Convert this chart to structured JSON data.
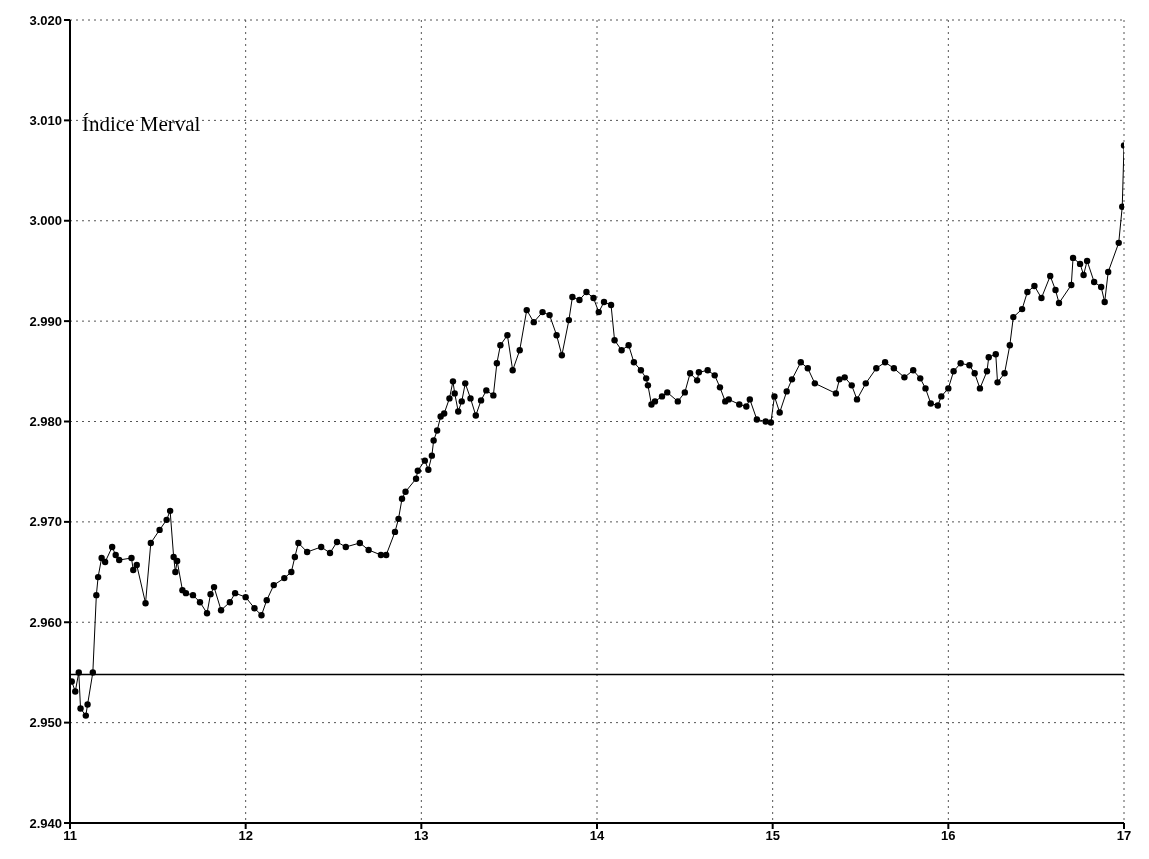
{
  "chart_data": {
    "type": "line",
    "annotations": [
      "Índice Merval"
    ],
    "xlim": [
      11,
      17
    ],
    "xticks": [
      11,
      12,
      13,
      14,
      15,
      16,
      17
    ],
    "ylim": [
      2940,
      3020
    ],
    "yticks": [
      {
        "value": 2940,
        "label": "2.940"
      },
      {
        "value": 2950,
        "label": "2.950"
      },
      {
        "value": 2960,
        "label": "2.960"
      },
      {
        "value": 2970,
        "label": "2.970"
      },
      {
        "value": 2980,
        "label": "2.980"
      },
      {
        "value": 2990,
        "label": "2.990"
      },
      {
        "value": 3000,
        "label": "3.000"
      },
      {
        "value": 3010,
        "label": "3.010"
      },
      {
        "value": 3020,
        "label": "3.020"
      }
    ],
    "grid": true,
    "marker": "circle",
    "line_style": "solid",
    "ref_lines": [
      {
        "axis": "y",
        "value": 2954.8,
        "color": "#000000"
      }
    ],
    "series": [
      {
        "color": "#000000",
        "x": [
          11.01,
          11.03,
          11.05,
          11.06,
          11.09,
          11.1,
          11.13,
          11.15,
          11.16,
          11.18,
          11.2,
          11.24,
          11.26,
          11.28,
          11.35,
          11.36,
          11.38,
          11.43,
          11.46,
          11.51,
          11.55,
          11.57,
          11.59,
          11.6,
          11.61,
          11.64,
          11.66,
          11.7,
          11.74,
          11.78,
          11.8,
          11.82,
          11.86,
          11.91,
          11.94,
          12.0,
          12.05,
          12.09,
          12.12,
          12.16,
          12.22,
          12.26,
          12.28,
          12.3,
          12.35,
          12.43,
          12.48,
          12.52,
          12.57,
          12.65,
          12.7,
          12.77,
          12.8,
          12.85,
          12.87,
          12.89,
          12.91,
          12.97,
          12.98,
          13.02,
          13.04,
          13.06,
          13.07,
          13.09,
          13.11,
          13.13,
          13.16,
          13.18,
          13.19,
          13.21,
          13.23,
          13.25,
          13.28,
          13.31,
          13.34,
          13.37,
          13.41,
          13.43,
          13.45,
          13.49,
          13.52,
          13.56,
          13.6,
          13.64,
          13.69,
          13.73,
          13.77,
          13.8,
          13.84,
          13.86,
          13.9,
          13.94,
          13.98,
          14.01,
          14.04,
          14.08,
          14.1,
          14.14,
          14.18,
          14.21,
          14.25,
          14.28,
          14.29,
          14.31,
          14.33,
          14.37,
          14.4,
          14.46,
          14.5,
          14.53,
          14.57,
          14.58,
          14.63,
          14.67,
          14.7,
          14.73,
          14.75,
          14.81,
          14.85,
          14.87,
          14.91,
          14.96,
          14.99,
          15.01,
          15.04,
          15.08,
          15.11,
          15.16,
          15.2,
          15.24,
          15.36,
          15.38,
          15.41,
          15.45,
          15.48,
          15.53,
          15.59,
          15.64,
          15.69,
          15.75,
          15.8,
          15.84,
          15.87,
          15.9,
          15.94,
          15.96,
          16.0,
          16.03,
          16.07,
          16.12,
          16.15,
          16.18,
          16.22,
          16.23,
          16.27,
          16.28,
          16.32,
          16.35,
          16.37,
          16.42,
          16.45,
          16.49,
          16.53,
          16.58,
          16.61,
          16.63,
          16.7,
          16.71,
          16.75,
          16.77,
          16.79,
          16.83,
          16.87,
          16.89,
          16.91,
          16.97,
          16.99,
          17.0
        ],
        "values": [
          2954.1,
          2953.1,
          2955.0,
          2951.4,
          2950.7,
          2951.8,
          2955.0,
          2962.7,
          2964.5,
          2966.4,
          2966.0,
          2967.5,
          2966.7,
          2966.2,
          2966.4,
          2965.2,
          2965.7,
          2961.9,
          2967.9,
          2969.2,
          2970.2,
          2971.1,
          2966.5,
          2965.0,
          2966.1,
          2963.2,
          2962.9,
          2962.7,
          2962.0,
          2960.9,
          2962.8,
          2963.5,
          2961.2,
          2962.0,
          2962.9,
          2962.5,
          2961.4,
          2960.7,
          2962.2,
          2963.7,
          2964.4,
          2965.0,
          2966.5,
          2967.9,
          2967.0,
          2967.5,
          2966.9,
          2968.0,
          2967.5,
          2967.9,
          2967.2,
          2966.7,
          2966.7,
          2969.0,
          2970.3,
          2972.3,
          2973.0,
          2974.3,
          2975.1,
          2976.1,
          2975.2,
          2976.6,
          2978.1,
          2979.1,
          2980.5,
          2980.8,
          2982.3,
          2984.0,
          2982.8,
          2981.0,
          2982.0,
          2983.8,
          2982.3,
          2980.6,
          2982.1,
          2983.1,
          2982.6,
          2985.8,
          2987.6,
          2988.6,
          2985.1,
          2987.1,
          2991.1,
          2989.9,
          2990.9,
          2990.6,
          2988.6,
          2986.6,
          2990.1,
          2992.4,
          2992.1,
          2992.9,
          2992.3,
          2990.9,
          2991.9,
          2991.6,
          2988.1,
          2987.1,
          2987.6,
          2985.9,
          2985.1,
          2984.3,
          2983.6,
          2981.7,
          2982.0,
          2982.5,
          2982.9,
          2982.0,
          2982.9,
          2984.8,
          2984.1,
          2984.9,
          2985.1,
          2984.6,
          2983.4,
          2982.0,
          2982.2,
          2981.7,
          2981.5,
          2982.2,
          2980.2,
          2980.0,
          2979.9,
          2982.5,
          2980.9,
          2983.0,
          2984.2,
          2985.9,
          2985.3,
          2983.8,
          2982.8,
          2984.2,
          2984.4,
          2983.6,
          2982.2,
          2983.8,
          2985.3,
          2985.9,
          2985.3,
          2984.4,
          2985.1,
          2984.3,
          2983.3,
          2981.8,
          2981.6,
          2982.5,
          2983.3,
          2985.0,
          2985.8,
          2985.6,
          2984.8,
          2983.3,
          2985.0,
          2986.4,
          2986.7,
          2983.9,
          2984.8,
          2987.6,
          2990.4,
          2991.2,
          2992.9,
          2993.5,
          2992.3,
          2994.5,
          2993.1,
          2991.8,
          2993.6,
          2996.3,
          2995.7,
          2994.6,
          2996.0,
          2993.9,
          2993.4,
          2991.9,
          2994.9,
          2997.8,
          3001.4,
          3007.5
        ]
      }
    ]
  }
}
